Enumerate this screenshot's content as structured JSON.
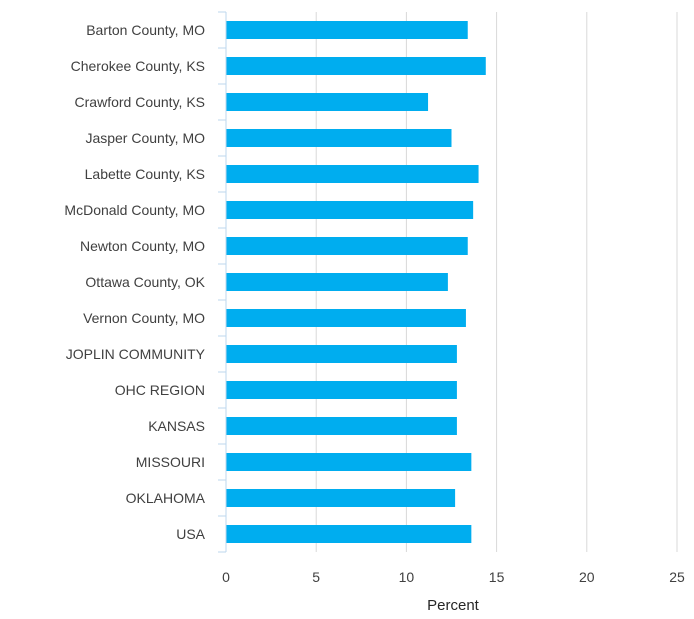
{
  "chart_data": {
    "type": "bar",
    "orientation": "horizontal",
    "categories": [
      "Barton County, MO",
      "Cherokee County, KS",
      "Crawford County, KS",
      "Jasper County, MO",
      "Labette County, KS",
      "McDonald County, MO",
      "Newton County, MO",
      "Ottawa County, OK",
      "Vernon County, MO",
      "JOPLIN COMMUNITY",
      "OHC REGION",
      "KANSAS",
      "MISSOURI",
      "OKLAHOMA",
      "USA"
    ],
    "values": [
      13.4,
      14.4,
      11.2,
      12.5,
      14.0,
      13.7,
      13.4,
      12.3,
      13.3,
      12.8,
      12.8,
      12.8,
      13.6,
      12.7,
      13.6
    ],
    "title": "",
    "xlabel": "Percent",
    "ylabel": "",
    "xlim": [
      0,
      25
    ],
    "xticks": [
      "0",
      "5",
      "10",
      "15",
      "20",
      "25"
    ],
    "grid": true,
    "legend": "none",
    "colors": {
      "bar": "#00ADEF",
      "grid": "#D9D9D9",
      "axis": "#BDD7EE"
    }
  }
}
